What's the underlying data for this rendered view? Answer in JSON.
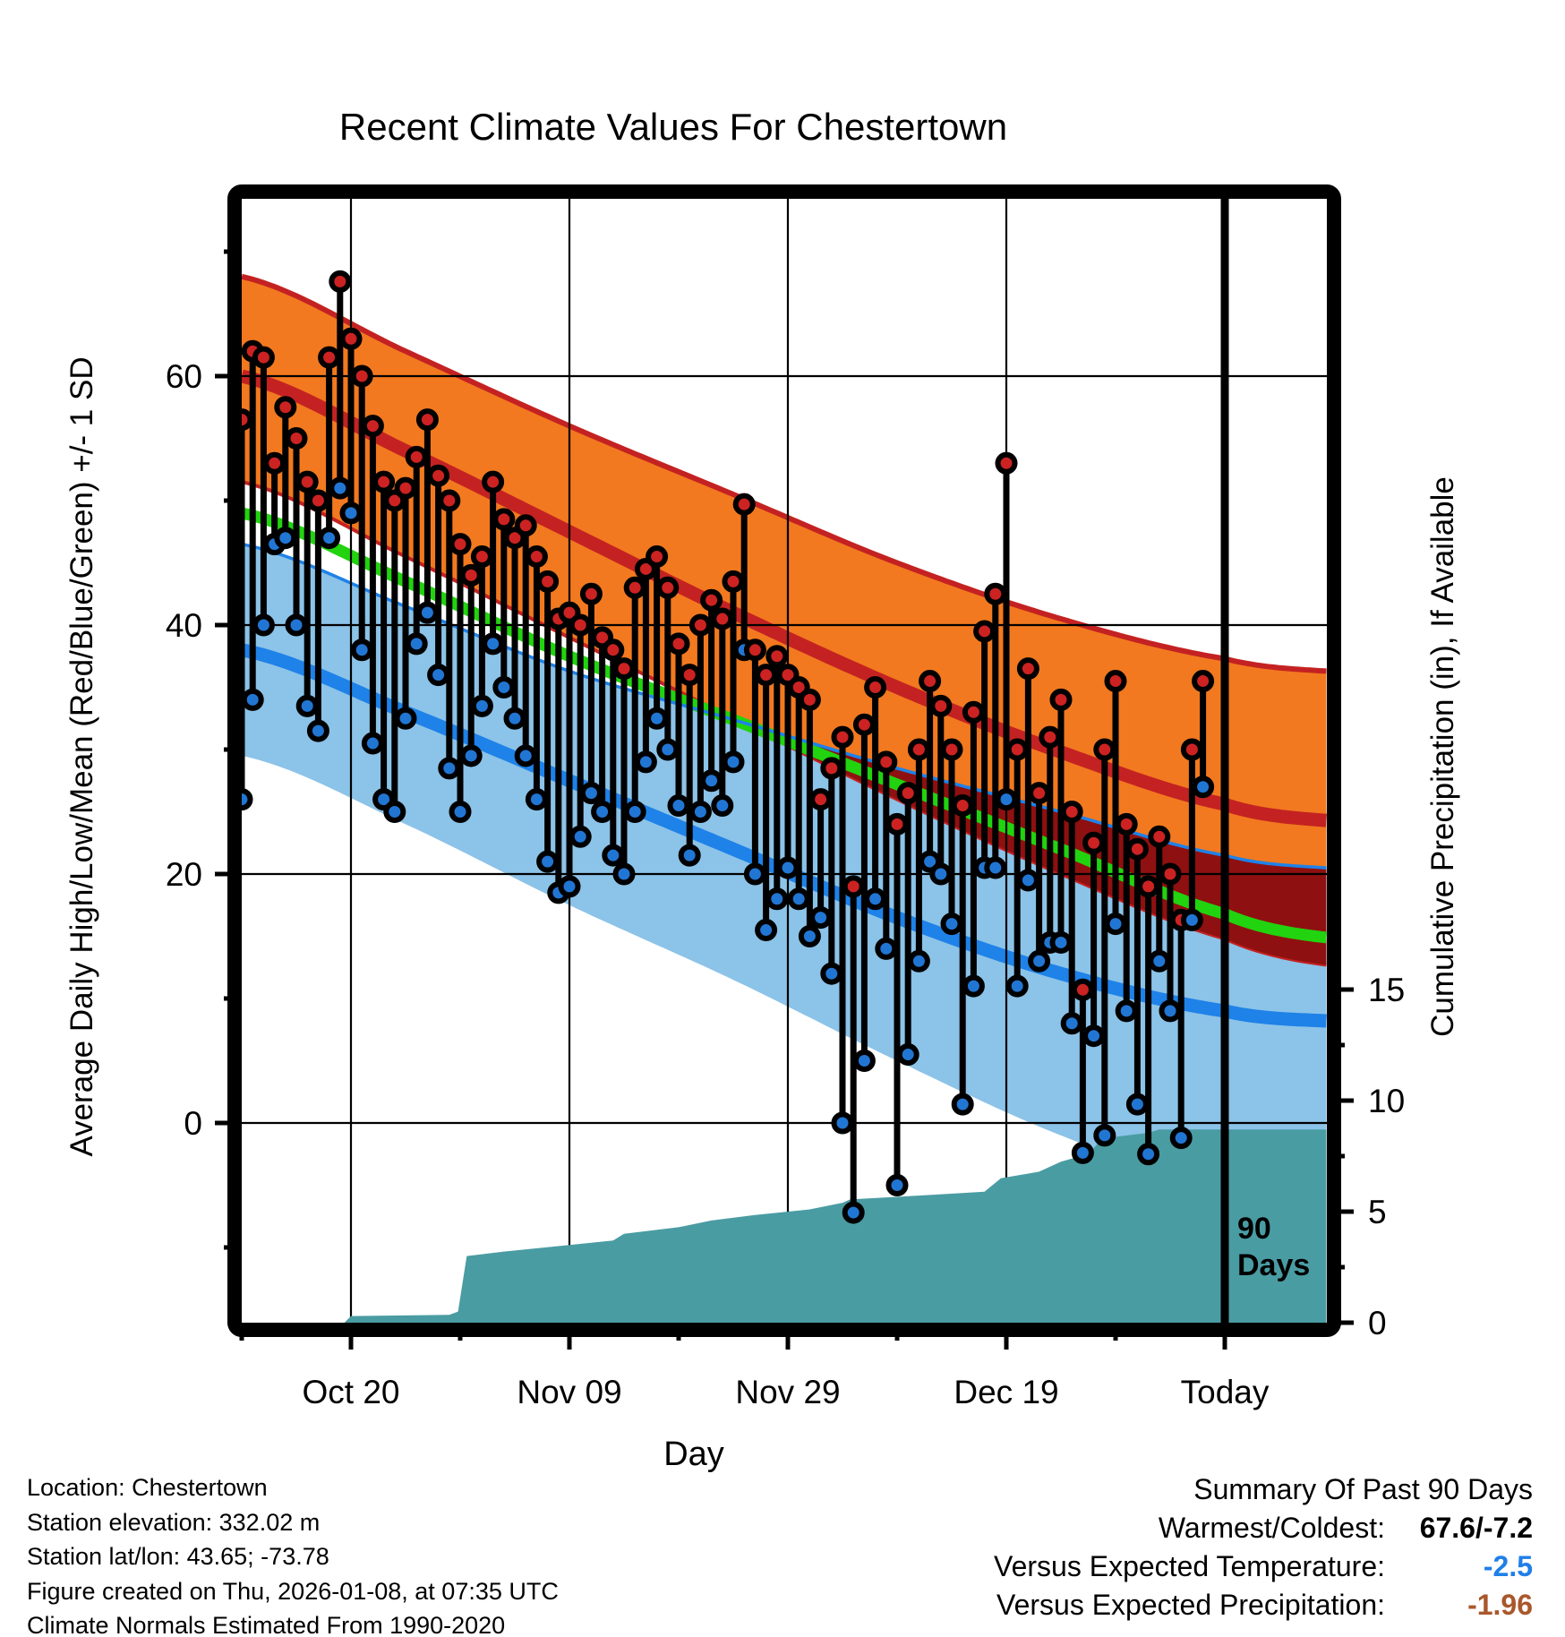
{
  "title": "Recent Climate Values For Chestertown",
  "axis_labels": {
    "left": "Average Daily High/Low/Mean (Red/Blue/Green) +/- 1 SD",
    "right": "Cumulative Precipitation (in), If Available",
    "bottom": "Day"
  },
  "marker": {
    "line1": "90",
    "line2": "Days"
  },
  "footer": {
    "line1": "Location: Chestertown",
    "line2": "Station elevation: 332.02 m",
    "line3": "Station lat/lon: 43.65; -73.78",
    "line4": "Figure created on Thu, 2026-01-08, at 07:35 UTC",
    "line5": "Climate Normals Estimated From 1990-2020"
  },
  "summary": {
    "title": "Summary Of Past 90 Days",
    "rows": [
      {
        "label": "Warmest/Coldest:",
        "value": "67.6/-7.2",
        "color": "#000000"
      },
      {
        "label": "Versus Expected Temperature:",
        "value": "-2.5",
        "color": "#1F7FE8"
      },
      {
        "label": "Versus Expected Precipitation:",
        "value": "-1.96",
        "color": "#A9582B"
      }
    ]
  },
  "chart_data": {
    "type": "composite",
    "title": "Recent Climate Values For Chestertown",
    "x_axis": {
      "label": "Day",
      "major_ticks": [
        {
          "day": 10,
          "label": "Oct 20"
        },
        {
          "day": 30,
          "label": "Nov 09"
        },
        {
          "day": 50,
          "label": "Nov 29"
        },
        {
          "day": 70,
          "label": "Dec 19"
        },
        {
          "day": 90,
          "label": "Today"
        }
      ],
      "minor_tick_days": [
        0,
        20,
        40,
        60,
        80
      ],
      "domain_days": [
        0,
        99.3
      ]
    },
    "y_axis_temp": {
      "label": "Average Daily High/Low/Mean (Red/Blue/Green) +/- 1 SD",
      "major_ticks": [
        60,
        40,
        20,
        0
      ],
      "minor_ticks": [
        70,
        50,
        30,
        10,
        -10
      ],
      "range": [
        -15.8,
        74.2
      ],
      "grid_values": [
        60,
        40,
        20,
        0
      ]
    },
    "y_axis_precip": {
      "label": "Cumulative Precipitation (in), If Available",
      "major_ticks": [
        15,
        10,
        5,
        0
      ],
      "minor_ticks": [
        12.5,
        7.5,
        2.5
      ],
      "range": [
        0,
        50.6
      ]
    },
    "normals_f": {
      "days": [
        0,
        15,
        30,
        45,
        60,
        75,
        90,
        99.3
      ],
      "high_plus_sd": [
        68,
        62,
        56,
        50.5,
        45,
        40.5,
        37.3,
        36.3
      ],
      "avg_high": [
        60,
        54,
        47.5,
        41,
        35,
        29.8,
        25.6,
        24.3
      ],
      "high_minus_sd": [
        51.5,
        45.5,
        39,
        32.5,
        26,
        20,
        14.8,
        12.7
      ],
      "mean": [
        49,
        43.5,
        37.5,
        32.4,
        27.2,
        22,
        16.8,
        14.9
      ],
      "low_plus_sd": [
        46.5,
        41.5,
        36.3,
        32.4,
        28.5,
        25,
        21.5,
        20.5
      ],
      "avg_low": [
        38,
        33,
        27.5,
        22,
        16.5,
        12,
        9,
        8.2
      ],
      "low_minus_sd": [
        29.5,
        24,
        17.5,
        11.5,
        5,
        -1,
        -5.3,
        -6.8
      ]
    },
    "daily_temps_f": {
      "first_day": 0,
      "highs": [
        56.5,
        62,
        61.5,
        53,
        57.5,
        55,
        51.5,
        50,
        61.5,
        67.6,
        63,
        60,
        56,
        51.5,
        50,
        51,
        53.5,
        56.5,
        52,
        50,
        46.5,
        44,
        45.5,
        51.5,
        48.5,
        47,
        48,
        45.5,
        43.5,
        40.5,
        41,
        40,
        42.5,
        39,
        38,
        36.5,
        43,
        44.5,
        45.5,
        43,
        38.5,
        36,
        40,
        42,
        40.5,
        43.5,
        49.7,
        38,
        36,
        37.5,
        36,
        35,
        34,
        26,
        28.5,
        31,
        19,
        32,
        35,
        29,
        24,
        26.5,
        30,
        35.5,
        33.5,
        30,
        25.5,
        33,
        39.5,
        42.5,
        53,
        30,
        36.5,
        26.5,
        31,
        34,
        25,
        10.7,
        22.5,
        30,
        35.5,
        24,
        22,
        19,
        23,
        20,
        16.3,
        30,
        35.5
      ],
      "lows": [
        26,
        34,
        40,
        46.5,
        47,
        40,
        33.5,
        31.5,
        47,
        51,
        49,
        38,
        30.5,
        26,
        25,
        32.5,
        38.5,
        41,
        36,
        28.5,
        25,
        29.5,
        33.5,
        38.5,
        35,
        32.5,
        29.5,
        26,
        21,
        18.5,
        19,
        23,
        26.5,
        25,
        21.5,
        20,
        25,
        29,
        32.5,
        30,
        25.5,
        21.5,
        25,
        27.5,
        25.5,
        29,
        38,
        20,
        15.5,
        18,
        20.5,
        18,
        15,
        16.5,
        12,
        0,
        -7.2,
        5,
        18,
        14,
        -5,
        5.5,
        13,
        21,
        20,
        16,
        1.5,
        11,
        20.5,
        20.5,
        26,
        11,
        19.5,
        13,
        14.5,
        14.5,
        8,
        -2.4,
        7,
        -1,
        16,
        9,
        1.5,
        -2.5,
        13,
        9,
        -1.2,
        16.3,
        27
      ],
      "warmest": 67.6,
      "coldest": -7.2
    },
    "precip_cumulative_in": {
      "days": [
        9.4,
        10,
        19,
        19.8,
        20.6,
        24,
        30,
        34,
        35,
        40,
        43,
        47,
        52,
        55,
        55.7,
        63,
        68,
        69.5,
        73,
        75,
        77.5,
        78.8,
        83,
        84,
        99.3
      ],
      "inches": [
        0,
        0.3,
        0.35,
        0.5,
        3.0,
        3.2,
        3.5,
        3.7,
        4.0,
        4.3,
        4.6,
        4.85,
        5.1,
        5.4,
        5.55,
        5.75,
        5.9,
        6.5,
        6.8,
        7.25,
        7.6,
        8.3,
        8.55,
        8.7,
        8.7
      ],
      "total": 8.7
    },
    "annotations": {
      "today_line_day": 90,
      "today_marker_text": "90 Days"
    },
    "legend_position": "none",
    "grid": true,
    "colors": {
      "high_band": "#F2791F",
      "high_line": "#C42222",
      "overlap_band": "#8F1010",
      "mean_line": "#22D30F",
      "low_band": "#8CC3E8",
      "low_line": "#1E82E8",
      "high_dot": "#CC2222",
      "low_dot": "#2176D4",
      "precip_fill": "#4A9CA3",
      "stem": "#000000",
      "grid_line": "#000000",
      "summary_temp_value": "#1F7FE8",
      "summary_precip_value": "#A9582B"
    }
  }
}
